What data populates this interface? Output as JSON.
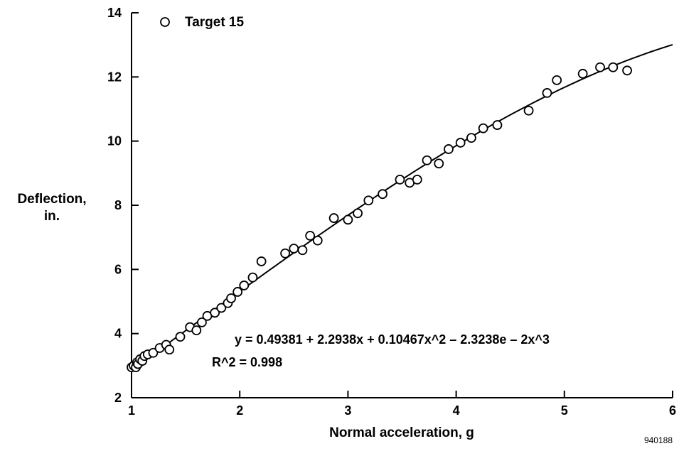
{
  "chart_data": {
    "type": "scatter",
    "xlabel": "Normal acceleration, g",
    "ylabel_lines": [
      "Deflection,",
      "in."
    ],
    "xlim": [
      1,
      6
    ],
    "ylim": [
      2,
      14
    ],
    "x_ticks": [
      "1",
      "2",
      "3",
      "4",
      "5",
      "6"
    ],
    "y_ticks": [
      "2",
      "4",
      "6",
      "8",
      "10",
      "12",
      "14"
    ],
    "legend": {
      "label": "Target 15",
      "marker": "open-circle",
      "position": "top-left"
    },
    "equation": "y = 0.49381 + 2.2938x + 0.10467x^2 – 2.3238e – 2x^3",
    "r_squared": "R^2 = 0.998",
    "figure_id": "940188",
    "grid": false,
    "fit_curve": {
      "type": "polynomial",
      "coefficients": [
        0.49381,
        2.2938,
        0.10467,
        -0.023238
      ],
      "x_range": [
        1,
        6
      ]
    },
    "series": [
      {
        "name": "Target 15",
        "x": [
          1.0,
          1.02,
          1.04,
          1.05,
          1.06,
          1.08,
          1.1,
          1.12,
          1.15,
          1.2,
          1.26,
          1.32,
          1.35,
          1.45,
          1.54,
          1.6,
          1.65,
          1.7,
          1.77,
          1.83,
          1.89,
          1.92,
          1.98,
          2.04,
          2.12,
          2.2,
          2.42,
          2.5,
          2.58,
          2.65,
          2.72,
          2.87,
          3.0,
          3.09,
          3.19,
          3.32,
          3.48,
          3.57,
          3.64,
          3.73,
          3.84,
          3.93,
          4.04,
          4.14,
          4.25,
          4.38,
          4.67,
          4.84,
          4.93,
          5.17,
          5.33,
          5.45,
          5.58
        ],
        "y": [
          2.95,
          3.0,
          2.95,
          3.1,
          3.05,
          3.2,
          3.15,
          3.3,
          3.35,
          3.4,
          3.55,
          3.65,
          3.5,
          3.9,
          4.2,
          4.1,
          4.35,
          4.55,
          4.65,
          4.8,
          4.95,
          5.1,
          5.3,
          5.5,
          5.75,
          6.25,
          6.5,
          6.65,
          6.6,
          7.05,
          6.9,
          7.6,
          7.55,
          7.75,
          8.15,
          8.35,
          8.8,
          8.7,
          8.8,
          9.4,
          9.3,
          9.75,
          9.95,
          10.1,
          10.4,
          10.5,
          10.95,
          11.5,
          11.9,
          12.1,
          12.3,
          12.3,
          12.2
        ]
      }
    ]
  }
}
